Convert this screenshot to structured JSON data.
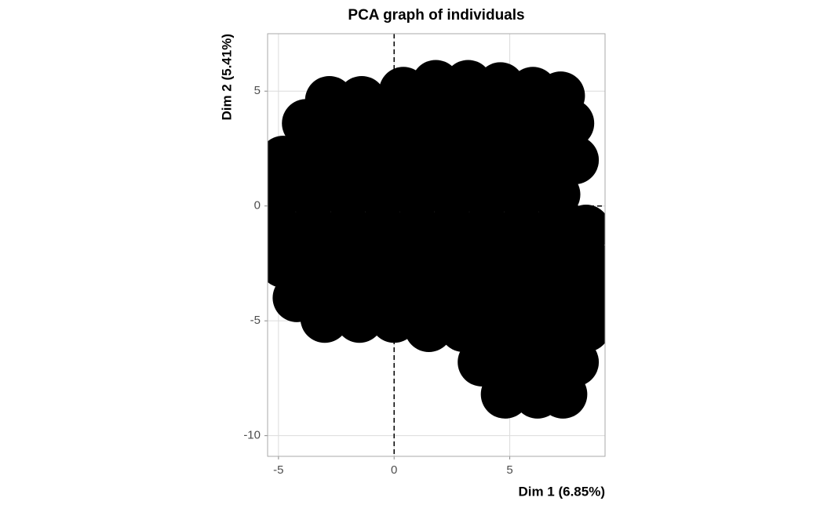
{
  "chart_data": {
    "type": "scatter",
    "title": "PCA graph of individuals",
    "x_label": "Dim 1 (6.85%)",
    "y_label": "Dim 2 (5.41%)",
    "xlim": [
      -5.47,
      9.12
    ],
    "ylim": [
      -10.9,
      7.5
    ],
    "xticks": [
      -5,
      0,
      5
    ],
    "yticks": [
      -10,
      -5,
      0,
      5
    ],
    "grid": true,
    "color": "#000000",
    "hline": 0,
    "vline": 0,
    "x": [
      -2.8,
      -1.4,
      0.4,
      1.8,
      3.2,
      4.6,
      6,
      7.2,
      -3.8,
      -2.3,
      -0.8,
      0.7,
      2.2,
      3.7,
      5.2,
      6.7,
      7.6,
      -4.8,
      -3.3,
      -1.8,
      -0.3,
      1.2,
      2.7,
      4.2,
      5.7,
      7.2,
      7.8,
      -5,
      -3.5,
      -2,
      -0.5,
      1,
      2.5,
      4,
      5.5,
      7,
      -5,
      -3.5,
      -2,
      -0.5,
      1,
      2.5,
      4,
      5.5,
      7,
      8.3,
      -4.8,
      -3.3,
      -1.8,
      -0.3,
      1.2,
      2.7,
      4.2,
      5.7,
      7.2,
      8.4,
      -4.2,
      -2.7,
      -1.2,
      0.3,
      1.8,
      3.3,
      4.8,
      6.3,
      7.8,
      8.5,
      -3,
      -1.5,
      0,
      1.5,
      3,
      4.5,
      6,
      7.5,
      8.3,
      3.8,
      5.2,
      6.6,
      7.8,
      4.8,
      6.2,
      7.3
    ],
    "y": [
      4.6,
      4.6,
      5,
      5.3,
      5.3,
      5.2,
      5,
      4.8,
      3.6,
      3.6,
      3.6,
      3.6,
      3.6,
      3.6,
      3.6,
      3.6,
      3.6,
      2,
      2,
      2,
      2,
      2,
      2,
      2,
      2,
      2,
      2,
      0.5,
      0.5,
      0.5,
      0.5,
      0.5,
      0.5,
      0.5,
      0.5,
      0.5,
      -1,
      -1,
      -1,
      -1,
      -1,
      -1,
      -1,
      -1,
      -1,
      -1,
      -2.5,
      -2.5,
      -2.5,
      -2.5,
      -2.5,
      -2.5,
      -2.5,
      -2.5,
      -2.5,
      -2.5,
      -4,
      -4,
      -4,
      -4,
      -4,
      -4,
      -4,
      -4,
      -4,
      -4,
      -4.9,
      -4.9,
      -4.9,
      -5.3,
      -5.3,
      -5.3,
      -5.3,
      -5.3,
      -5.3,
      -6.8,
      -6.8,
      -6.8,
      -6.8,
      -8.2,
      -8.2,
      -8.2
    ]
  }
}
